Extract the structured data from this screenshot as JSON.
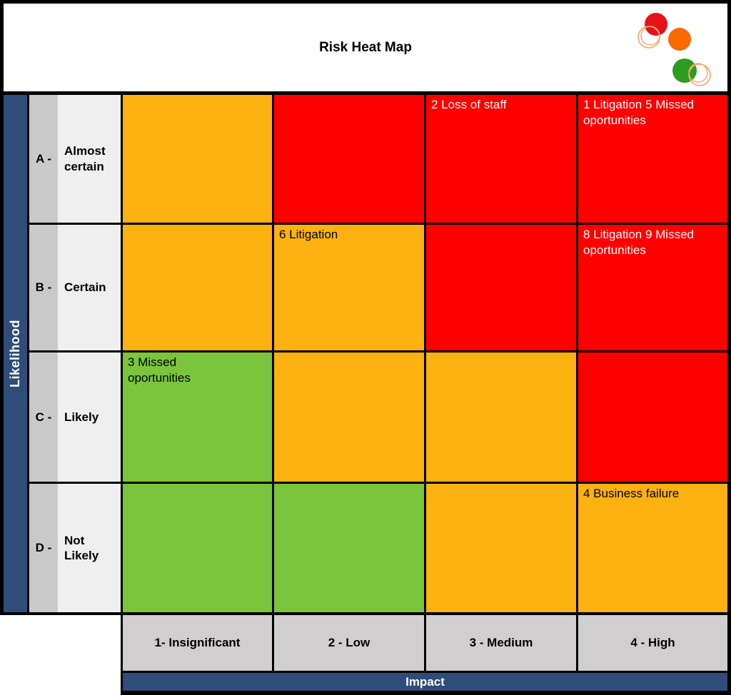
{
  "logo": {
    "red": "#E5121A",
    "orange": "#F86A00",
    "green": "#2D9C21",
    "ring": "#F9A36A"
  },
  "palette": {
    "low": "#7AC53C",
    "medium": "#FBB110",
    "high": "#FE0000",
    "axis_blue": "#2E4D7B",
    "header_gray": "#D0CECE",
    "row_key_gray": "#C9C9C9",
    "row_label_gray": "#EFEFEF",
    "gridline": "#000000",
    "text_on_high": "#FFFFFF"
  },
  "chart_data": {
    "type": "heatmap",
    "title": "Risk Heat Map",
    "xlabel": "Impact",
    "ylabel": "Likelihood",
    "x_categories": [
      "1- Insignificant",
      "2 - Low",
      "3 - Medium",
      "4 - High"
    ],
    "y_categories": [
      {
        "key": "A -",
        "label": "Almost\ncertain"
      },
      {
        "key": "B -",
        "label": "Certain"
      },
      {
        "key": "C -",
        "label": "Likely"
      },
      {
        "key": "D -",
        "label": "Not\nLikely"
      }
    ],
    "cells": [
      [
        {
          "risk": "medium",
          "label": ""
        },
        {
          "risk": "high",
          "label": ""
        },
        {
          "risk": "high",
          "label": "2 Loss of staff"
        },
        {
          "risk": "high",
          "label": "1 Litigation 5 Missed\noportunities"
        }
      ],
      [
        {
          "risk": "medium",
          "label": ""
        },
        {
          "risk": "medium",
          "label": "6 Litigation"
        },
        {
          "risk": "high",
          "label": ""
        },
        {
          "risk": "high",
          "label": "8 Litigation 9 Missed\noportunities"
        }
      ],
      [
        {
          "risk": "low",
          "label": "3 Missed\noportunities"
        },
        {
          "risk": "medium",
          "label": ""
        },
        {
          "risk": "medium",
          "label": ""
        },
        {
          "risk": "high",
          "label": ""
        }
      ],
      [
        {
          "risk": "low",
          "label": ""
        },
        {
          "risk": "low",
          "label": ""
        },
        {
          "risk": "medium",
          "label": ""
        },
        {
          "risk": "medium",
          "label": "4 Business failure"
        }
      ]
    ]
  }
}
